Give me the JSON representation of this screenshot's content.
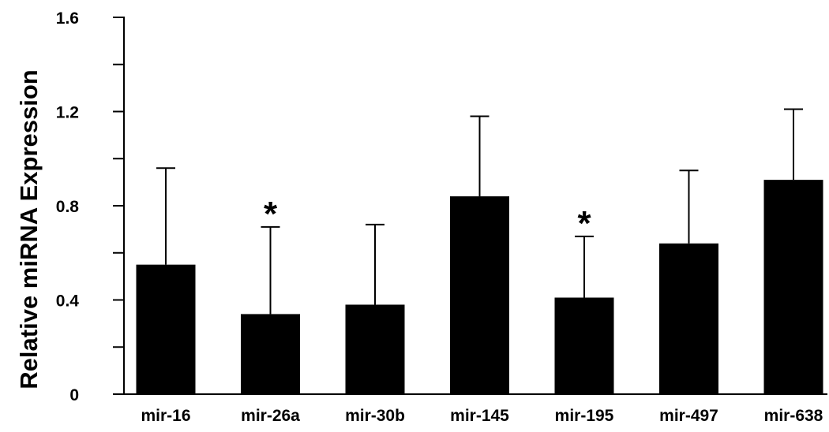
{
  "chart_data": {
    "type": "bar",
    "title": "",
    "xlabel": "",
    "ylabel": "Relative miRNA Expression",
    "ylim": [
      0,
      1.6
    ],
    "yticks": [
      {
        "value": 0,
        "label": "0"
      },
      {
        "value": 0.2,
        "label": ""
      },
      {
        "value": 0.4,
        "label": "0.4"
      },
      {
        "value": 0.6,
        "label": ""
      },
      {
        "value": 0.8,
        "label": "0.8"
      },
      {
        "value": 1.0,
        "label": ""
      },
      {
        "value": 1.2,
        "label": "1.2"
      },
      {
        "value": 1.4,
        "label": ""
      },
      {
        "value": 1.6,
        "label": "1.6"
      }
    ],
    "categories": [
      "mir-16",
      "mir-26a",
      "mir-30b",
      "mir-145",
      "mir-195",
      "mir-497",
      "mir-638"
    ],
    "values": [
      0.55,
      0.34,
      0.38,
      0.84,
      0.41,
      0.64,
      0.91
    ],
    "error_upper": [
      0.96,
      0.71,
      0.72,
      1.18,
      0.67,
      0.95,
      1.21
    ],
    "significance": [
      "",
      "*",
      "",
      "",
      "*",
      "",
      ""
    ],
    "grid": false,
    "legend": "none",
    "colors": {
      "bar": "#000000",
      "axis": "#000000"
    }
  }
}
